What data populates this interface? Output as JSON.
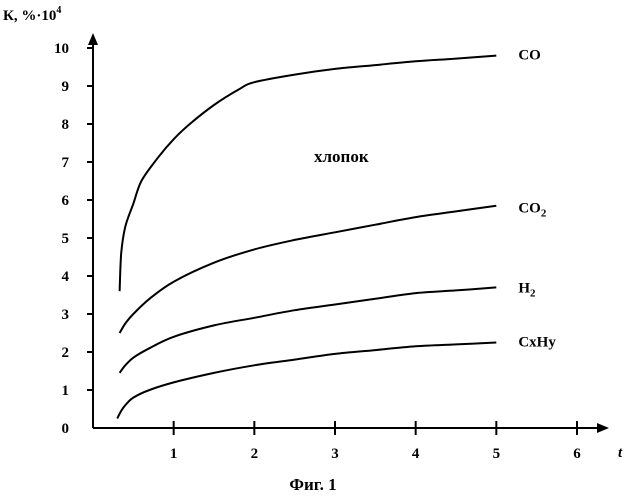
{
  "chart_data": {
    "type": "line",
    "title": "",
    "ylabel_main": "К, %·10",
    "ylabel_sup": "4",
    "xlabel": "t",
    "xlim": [
      0,
      6
    ],
    "ylim": [
      0,
      10
    ],
    "xticks": [
      1,
      2,
      3,
      4,
      5,
      6
    ],
    "yticks": [
      0,
      1,
      2,
      3,
      4,
      5,
      6,
      7,
      8,
      9,
      10
    ],
    "grid": false,
    "legend": "none",
    "annotation": "хлопок",
    "series": [
      {
        "name": "CO",
        "label_main": "CO",
        "label_sub": "",
        "x": [
          0.33,
          0.35,
          0.4,
          0.5,
          0.6,
          0.8,
          1.0,
          1.2,
          1.5,
          1.8,
          2.0,
          2.5,
          3.0,
          3.5,
          4.0,
          4.5,
          5.0
        ],
        "y": [
          3.6,
          4.6,
          5.3,
          5.9,
          6.5,
          7.1,
          7.6,
          8.0,
          8.5,
          8.9,
          9.1,
          9.3,
          9.45,
          9.55,
          9.65,
          9.72,
          9.8
        ]
      },
      {
        "name": "CO2",
        "label_main": "CO",
        "label_sub": "2",
        "x": [
          0.33,
          0.4,
          0.5,
          0.7,
          1.0,
          1.5,
          2.0,
          2.5,
          3.0,
          3.5,
          4.0,
          4.5,
          5.0
        ],
        "y": [
          2.5,
          2.75,
          3.0,
          3.4,
          3.85,
          4.35,
          4.7,
          4.95,
          5.15,
          5.35,
          5.55,
          5.7,
          5.85
        ]
      },
      {
        "name": "H2",
        "label_main": "H",
        "label_sub": "2",
        "x": [
          0.33,
          0.4,
          0.5,
          0.7,
          1.0,
          1.5,
          2.0,
          2.5,
          3.0,
          3.5,
          4.0,
          4.5,
          5.0
        ],
        "y": [
          1.45,
          1.65,
          1.85,
          2.1,
          2.4,
          2.7,
          2.9,
          3.1,
          3.25,
          3.4,
          3.55,
          3.62,
          3.7
        ]
      },
      {
        "name": "CxHy",
        "label_main": "CxHy",
        "label_sub": "",
        "x": [
          0.3,
          0.35,
          0.4,
          0.5,
          0.7,
          1.0,
          1.5,
          2.0,
          2.5,
          3.0,
          3.5,
          4.0,
          4.5,
          5.0
        ],
        "y": [
          0.25,
          0.45,
          0.6,
          0.8,
          1.0,
          1.2,
          1.45,
          1.65,
          1.8,
          1.95,
          2.05,
          2.15,
          2.2,
          2.25
        ]
      }
    ]
  },
  "caption": "Фиг. 1"
}
